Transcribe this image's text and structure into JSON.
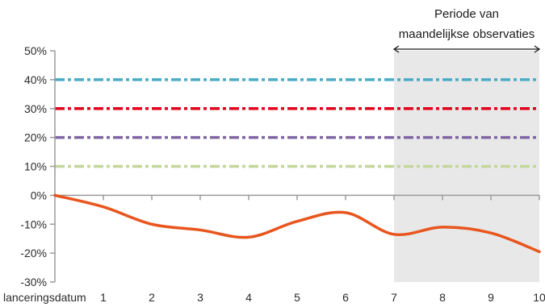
{
  "chart_data": {
    "type": "line",
    "title": "",
    "xlabel": "",
    "ylabel": "",
    "x_categories": [
      "lanceringsdatum",
      "1",
      "2",
      "3",
      "4",
      "5",
      "6",
      "7",
      "8",
      "9",
      "10"
    ],
    "y_ticks": [
      "50%",
      "40%",
      "30%",
      "20%",
      "10%",
      "0%",
      "-10%",
      "-20%",
      "-30%"
    ],
    "ylim": [
      -30,
      50
    ],
    "y_unit": "%",
    "grid": false,
    "legend": "none",
    "reference_levels": [
      {
        "value": 40,
        "color": "#4bacc6",
        "style": "dashed"
      },
      {
        "value": 30,
        "color": "#e3001b",
        "style": "dashed"
      },
      {
        "value": 20,
        "color": "#8064a2",
        "style": "dashed"
      },
      {
        "value": 10,
        "color": "#c3d69b",
        "style": "dashed"
      }
    ],
    "series": [
      {
        "color": "#e8561e",
        "smooth": true,
        "values": [
          0,
          -4,
          -10,
          -12,
          -14.5,
          -9,
          -6,
          -13.5,
          -11,
          -13,
          -19.5
        ]
      }
    ],
    "highlight_region": {
      "from": "7",
      "to": "10",
      "color": "#e8e8e8",
      "label_lines": [
        "Periode van",
        "maandelijkse observaties"
      ]
    }
  }
}
